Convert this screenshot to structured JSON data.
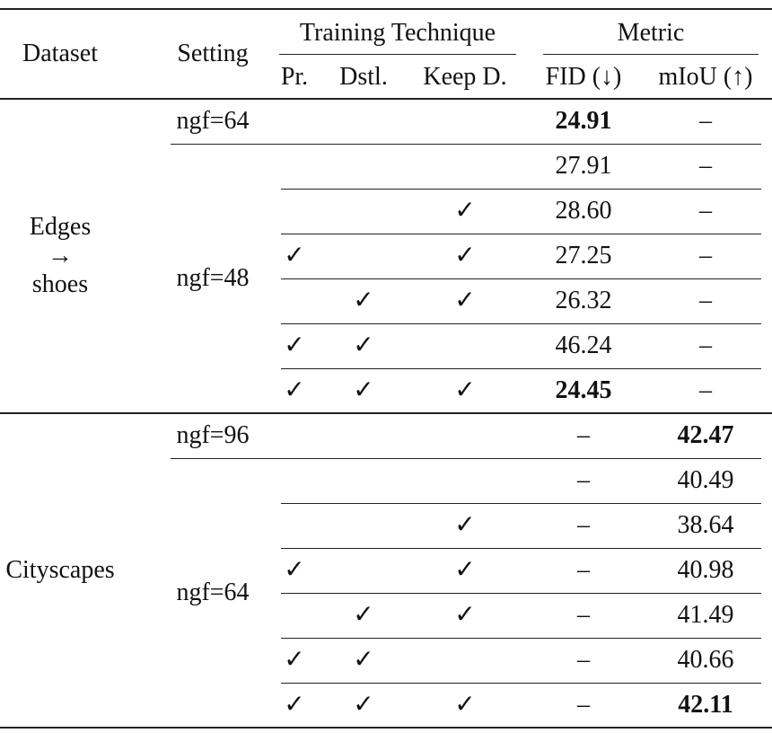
{
  "header": {
    "dataset": "Dataset",
    "setting": "Setting",
    "training": "Training Technique",
    "metric": "Metric",
    "columns": [
      "Pr.",
      "Dstl.",
      "Keep D.",
      "FID (↓)",
      "mIoU (↑)"
    ]
  },
  "groups": [
    {
      "dataset": [
        "Edges",
        "→",
        "shoes"
      ],
      "settings": [
        {
          "label": "ngf=64",
          "rows": 1
        },
        {
          "label": "ngf=48",
          "rows": 6
        }
      ],
      "rows": [
        [
          null,
          null,
          null,
          "24.91",
          "–"
        ],
        [
          null,
          null,
          null,
          "27.91",
          "–"
        ],
        [
          null,
          null,
          "✓",
          "28.60",
          "–"
        ],
        [
          "✓",
          null,
          "✓",
          "27.25",
          "–"
        ],
        [
          null,
          "✓",
          "✓",
          "26.32",
          "–"
        ],
        [
          "✓",
          "✓",
          null,
          "46.24",
          "–"
        ],
        [
          "✓",
          "✓",
          "✓",
          "24.45",
          "–"
        ]
      ],
      "bold": [
        [
          0,
          3
        ],
        [
          6,
          3
        ]
      ]
    },
    {
      "dataset": [
        "Cityscapes"
      ],
      "settings": [
        {
          "label": "ngf=96",
          "rows": 1
        },
        {
          "label": "ngf=64",
          "rows": 6
        }
      ],
      "rows": [
        [
          null,
          null,
          null,
          "–",
          "42.47"
        ],
        [
          null,
          null,
          null,
          "–",
          "40.49"
        ],
        [
          null,
          null,
          "✓",
          "–",
          "38.64"
        ],
        [
          "✓",
          null,
          "✓",
          "–",
          "40.98"
        ],
        [
          null,
          "✓",
          "✓",
          "–",
          "41.49"
        ],
        [
          "✓",
          "✓",
          null,
          "–",
          "40.66"
        ],
        [
          "✓",
          "✓",
          "✓",
          "–",
          "42.11"
        ]
      ],
      "bold": [
        [
          0,
          4
        ],
        [
          6,
          4
        ]
      ]
    }
  ]
}
